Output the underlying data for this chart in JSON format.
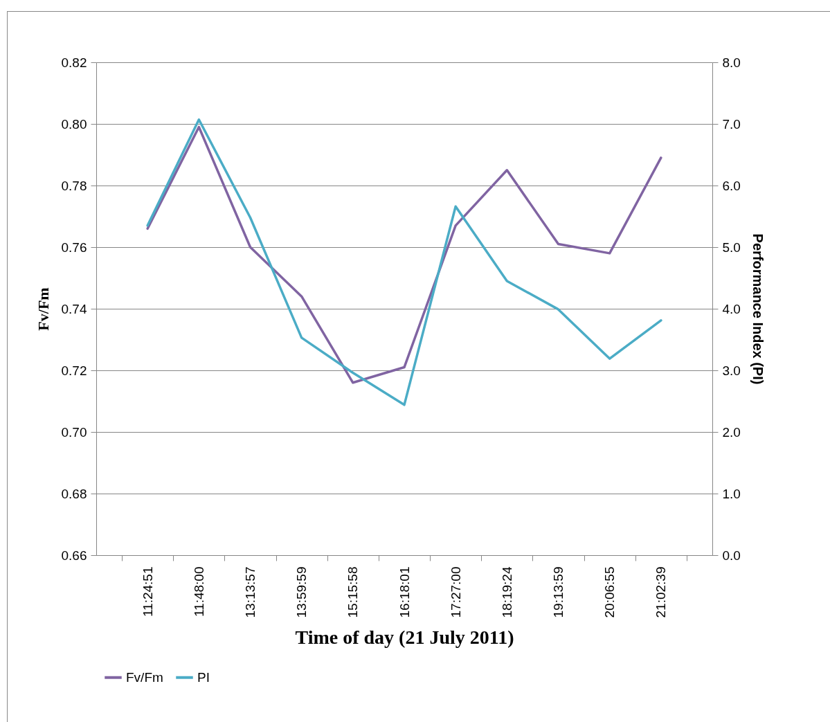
{
  "chart_data": {
    "type": "line",
    "xlabel": "Time of day (21 July 2011)",
    "ylabel": "Fv/Fm",
    "y2label": "Performance Index (PI)",
    "categories": [
      "11:24:51",
      "11:48:00",
      "13:13:57",
      "13:59:59",
      "15:15:58",
      "16:18:01",
      "17:27:00",
      "18:19:24",
      "19:13:59",
      "20:06:55",
      "21:02:39"
    ],
    "series": [
      {
        "name": "Fv/Fm",
        "color": "#8064a2",
        "values": [
          0.766,
          0.799,
          0.76,
          0.744,
          0.716,
          0.721,
          0.767,
          0.785,
          0.761,
          0.758,
          0.789
        ]
      },
      {
        "name": "PI",
        "color": "#4bacc6",
        "axis": "y2",
        "values": [
          5.35,
          7.07,
          5.48,
          3.53,
          2.96,
          2.44,
          5.66,
          4.45,
          3.99,
          3.19,
          3.81
        ]
      }
    ],
    "ylim": [
      0.66,
      0.82
    ],
    "yticks": [
      {
        "value": 0.66,
        "label": "0.66"
      },
      {
        "value": 0.68,
        "label": "0.68"
      },
      {
        "value": 0.7,
        "label": "0.70"
      },
      {
        "value": 0.72,
        "label": "0.72"
      },
      {
        "value": 0.74,
        "label": "0.74"
      },
      {
        "value": 0.76,
        "label": "0.76"
      },
      {
        "value": 0.78,
        "label": "0.78"
      },
      {
        "value": 0.8,
        "label": "0.80"
      },
      {
        "value": 0.82,
        "label": "0.82"
      }
    ],
    "y2lim": [
      0,
      8
    ],
    "y2ticks": [
      {
        "value": 0,
        "label": "0.0"
      },
      {
        "value": 1,
        "label": "1.0"
      },
      {
        "value": 2,
        "label": "2.0"
      },
      {
        "value": 3,
        "label": "3.0"
      },
      {
        "value": 4,
        "label": "4.0"
      },
      {
        "value": 5,
        "label": "5.0"
      },
      {
        "value": 6,
        "label": "6.0"
      },
      {
        "value": 7,
        "label": "7.0"
      },
      {
        "value": 8,
        "label": "8.0"
      }
    ],
    "grid": "y",
    "legend": "bottom",
    "marker": "none",
    "line_style": "solid"
  }
}
